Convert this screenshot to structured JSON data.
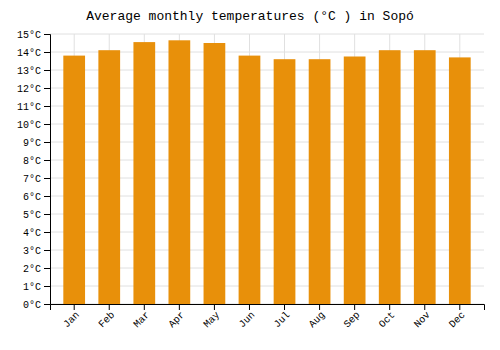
{
  "chart_data": {
    "type": "bar",
    "title": "Average monthly temperatures (°C ) in Sopó",
    "categories": [
      "Jan",
      "Feb",
      "Mar",
      "Apr",
      "May",
      "Jun",
      "Jul",
      "Aug",
      "Sep",
      "Oct",
      "Nov",
      "Dec"
    ],
    "values": [
      13.8,
      14.1,
      14.55,
      14.65,
      14.5,
      13.8,
      13.6,
      13.6,
      13.75,
      14.1,
      14.1,
      13.7
    ],
    "color": "#E8900A",
    "ylim": [
      0,
      15
    ],
    "yticks": [
      {
        "value": 0,
        "label": "0°C"
      },
      {
        "value": 1,
        "label": "1°C"
      },
      {
        "value": 2,
        "label": "2°C"
      },
      {
        "value": 3,
        "label": "3°C"
      },
      {
        "value": 4,
        "label": "4°C"
      },
      {
        "value": 5,
        "label": "5°C"
      },
      {
        "value": 6,
        "label": "6°C"
      },
      {
        "value": 7,
        "label": "7°C"
      },
      {
        "value": 8,
        "label": "8°C"
      },
      {
        "value": 9,
        "label": "9°C"
      },
      {
        "value": 10,
        "label": "10°C"
      },
      {
        "value": 11,
        "label": "11°C"
      },
      {
        "value": 12,
        "label": "12°C"
      },
      {
        "value": 13,
        "label": "13°C"
      },
      {
        "value": 14,
        "label": "14°C"
      },
      {
        "value": 15,
        "label": "15°C"
      }
    ],
    "grid": true
  }
}
